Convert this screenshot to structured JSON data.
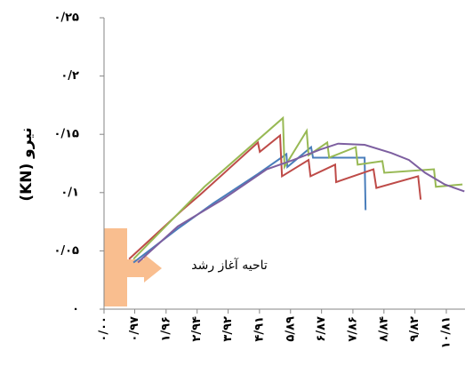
{
  "chart_data": {
    "type": "line",
    "y_label": "(KN) نیرو",
    "annotation": "تاحیه آغاز رشد",
    "xlim": [
      0,
      11.4
    ],
    "ylim": [
      0,
      0.25
    ],
    "xticks": [
      {
        "value": 0,
        "label": "۰/۰۰"
      },
      {
        "value": 0.97,
        "label": "۰/۹۷"
      },
      {
        "value": 1.96,
        "label": "۱/۹۶"
      },
      {
        "value": 2.94,
        "label": "۲/۹۴"
      },
      {
        "value": 3.92,
        "label": "۳/۹۲"
      },
      {
        "value": 4.91,
        "label": "۴/۹۱"
      },
      {
        "value": 5.89,
        "label": "۵/۸۹"
      },
      {
        "value": 6.87,
        "label": "۶/۸۷"
      },
      {
        "value": 7.86,
        "label": "۷/۸۶"
      },
      {
        "value": 8.84,
        "label": "۸/۸۴"
      },
      {
        "value": 9.82,
        "label": "۹/۸۲"
      },
      {
        "value": 10.81,
        "label": "۱۰/۸۱"
      }
    ],
    "yticks": [
      {
        "value": 0,
        "label": "۰"
      },
      {
        "value": 0.05,
        "label": "۰/۰۵"
      },
      {
        "value": 0.1,
        "label": "۰/۱"
      },
      {
        "value": 0.15,
        "label": "۰/۱۵"
      },
      {
        "value": 0.2,
        "label": "۰/۲"
      },
      {
        "value": 0.25,
        "label": "۰/۲۵"
      }
    ],
    "series": [
      {
        "color": "#4a7ebb",
        "x": [
          0.93,
          2.33,
          3.46,
          4.86,
          5.76,
          5.79,
          6.54,
          6.6,
          8.23,
          8.26
        ],
        "values": [
          0.04,
          0.069,
          0.091,
          0.116,
          0.133,
          0.122,
          0.139,
          0.13,
          0.13,
          0.085
        ]
      },
      {
        "color": "#be4b48",
        "x": [
          0.79,
          2.47,
          3.03,
          4.86,
          4.92,
          5.56,
          5.62,
          6.46,
          6.52,
          7.3,
          7.33,
          8.51,
          8.6,
          9.92,
          10.0
        ],
        "values": [
          0.043,
          0.085,
          0.098,
          0.143,
          0.135,
          0.149,
          0.114,
          0.128,
          0.114,
          0.124,
          0.109,
          0.12,
          0.104,
          0.114,
          0.094
        ]
      },
      {
        "color": "#98b954",
        "x": [
          0.93,
          3.17,
          5.65,
          5.7,
          6.4,
          6.46,
          7.05,
          7.11,
          7.95,
          8.01,
          8.79,
          8.85,
          10.42,
          10.48,
          11.32
        ],
        "values": [
          0.043,
          0.105,
          0.164,
          0.122,
          0.153,
          0.132,
          0.143,
          0.13,
          0.139,
          0.124,
          0.127,
          0.117,
          0.12,
          0.105,
          0.107
        ]
      },
      {
        "color": "#7d5fa0",
        "x": [
          1.07,
          2.33,
          3.74,
          5.14,
          5.98,
          6.83,
          7.39,
          8.23,
          9.07,
          9.63,
          10.14,
          10.76,
          11.38
        ],
        "values": [
          0.04,
          0.071,
          0.094,
          0.12,
          0.128,
          0.137,
          0.142,
          0.141,
          0.134,
          0.128,
          0.117,
          0.107,
          0.101
        ]
      }
    ]
  }
}
